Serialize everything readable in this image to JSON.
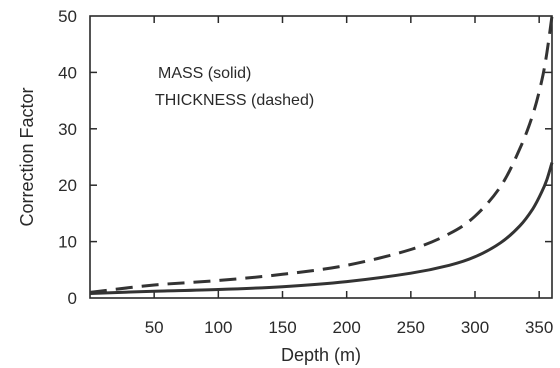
{
  "chart_data": {
    "type": "line",
    "title": "",
    "xlabel": "Depth (m)",
    "ylabel": "Correction Factor",
    "xlim": [
      0,
      360
    ],
    "ylim": [
      0,
      50
    ],
    "x_ticks": [
      50,
      100,
      150,
      200,
      250,
      300,
      350
    ],
    "y_ticks": [
      0,
      10,
      20,
      30,
      40,
      50
    ],
    "grid": false,
    "annotations": [
      "MASS (solid)",
      "THICKNESS (dashed)"
    ],
    "series": [
      {
        "style": "solid",
        "color": "#333333",
        "x": [
          0,
          50,
          100,
          150,
          200,
          250,
          280,
          300,
          320,
          335,
          345,
          352,
          356,
          360
        ],
        "y": [
          0.8,
          1.2,
          1.5,
          2.0,
          2.9,
          4.4,
          5.8,
          7.3,
          9.8,
          12.8,
          15.8,
          18.8,
          21.0,
          24.0
        ]
      },
      {
        "style": "dashed",
        "color": "#333333",
        "x": [
          0,
          50,
          100,
          150,
          200,
          250,
          280,
          300,
          320,
          335,
          345,
          352,
          356,
          360
        ],
        "y": [
          1.0,
          2.3,
          3.1,
          4.2,
          5.8,
          8.6,
          11.4,
          14.5,
          19.8,
          26.5,
          32.5,
          38.5,
          43.5,
          50.0
        ]
      }
    ]
  }
}
